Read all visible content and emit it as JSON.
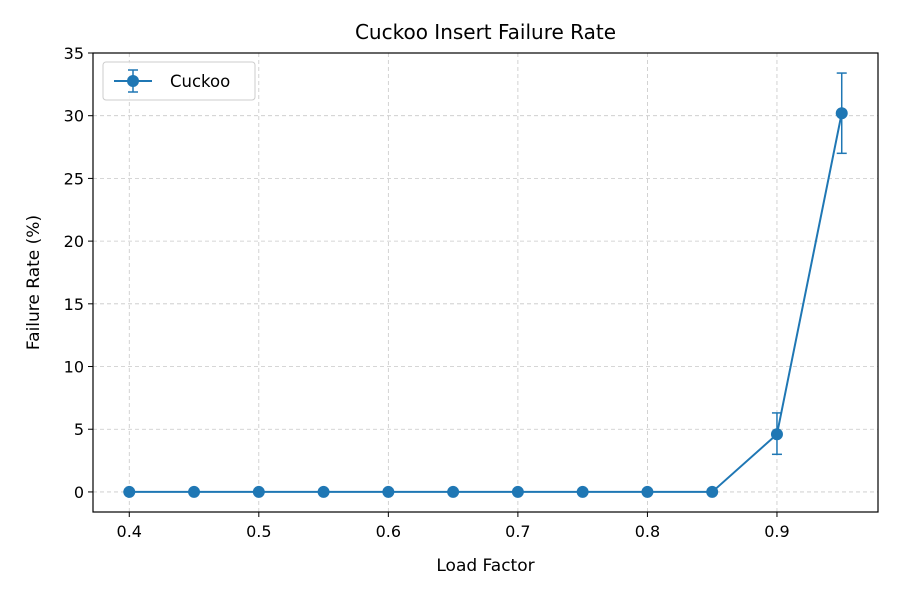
{
  "chart_data": {
    "type": "line",
    "title": "Cuckoo Insert Failure Rate",
    "xlabel": "Load Factor",
    "ylabel": "Failure Rate (%)",
    "xlim": [
      0.372,
      0.978
    ],
    "ylim": [
      -1.6,
      35
    ],
    "x_ticks": [
      0.4,
      0.5,
      0.6,
      0.7,
      0.8,
      0.9
    ],
    "y_ticks": [
      0,
      5,
      10,
      15,
      20,
      25,
      30,
      35
    ],
    "grid": true,
    "legend_position": "top-left",
    "series": [
      {
        "name": "Cuckoo",
        "color": "#1f77b4",
        "marker": "circle",
        "x": [
          0.4,
          0.45,
          0.5,
          0.55,
          0.6,
          0.65,
          0.7,
          0.75,
          0.8,
          0.85,
          0.9,
          0.95
        ],
        "y": [
          0,
          0,
          0,
          0,
          0,
          0,
          0,
          0,
          0,
          0,
          4.6,
          30.2
        ],
        "error_low": [
          0,
          0,
          0,
          0,
          0,
          0,
          0,
          0,
          0,
          0,
          1.6,
          3.2
        ],
        "error_high": [
          0,
          0,
          0,
          0,
          0,
          0,
          0,
          0,
          0,
          0,
          1.7,
          3.2
        ]
      }
    ]
  }
}
